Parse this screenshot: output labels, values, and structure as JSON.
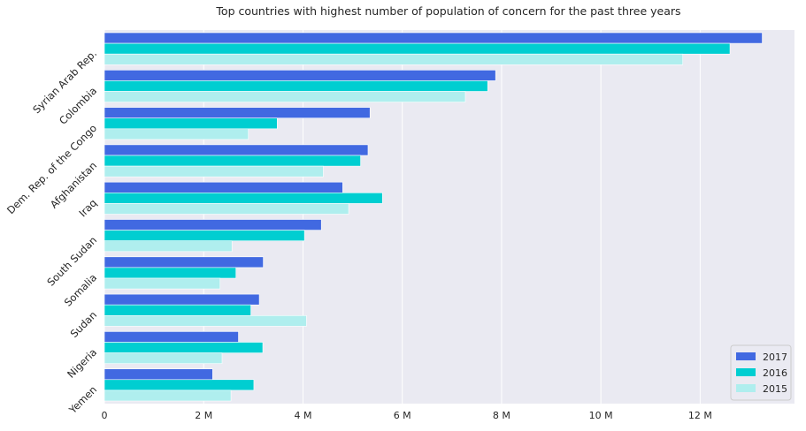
{
  "chart_data": {
    "type": "bar",
    "orientation": "horizontal",
    "title": "Top countries with highest number of population of concern for the past three years",
    "xlabel": "",
    "ylabel": "",
    "categories": [
      "Syrian Arab Rep.",
      "Colombia",
      "Dem. Rep. of the Congo",
      "Afghanistan",
      "Iraq",
      "South Sudan",
      "Somalia",
      "Sudan",
      "Nigeria",
      "Yemen"
    ],
    "series": [
      {
        "name": "2017",
        "color": "#4169e1",
        "values": [
          13.25,
          7.88,
          5.35,
          5.31,
          4.8,
          4.37,
          3.2,
          3.12,
          2.7,
          2.18
        ]
      },
      {
        "name": "2016",
        "color": "#00ced1",
        "values": [
          12.6,
          7.72,
          3.48,
          5.16,
          5.6,
          4.03,
          2.65,
          2.95,
          3.19,
          3.01
        ]
      },
      {
        "name": "2015",
        "color": "#afeeee",
        "values": [
          11.65,
          7.27,
          2.9,
          4.41,
          4.92,
          2.57,
          2.33,
          4.07,
          2.37,
          2.55
        ]
      }
    ],
    "xlim": [
      0,
      13.9
    ],
    "xticks": [
      0,
      2,
      4,
      6,
      8,
      10,
      12
    ],
    "xtick_labels": [
      "0",
      "2 M",
      "4 M",
      "6 M",
      "8 M",
      "10 M",
      "12 M"
    ],
    "grid": true,
    "legend_position": "bottom-right",
    "background_color": "#eaeaf2"
  }
}
